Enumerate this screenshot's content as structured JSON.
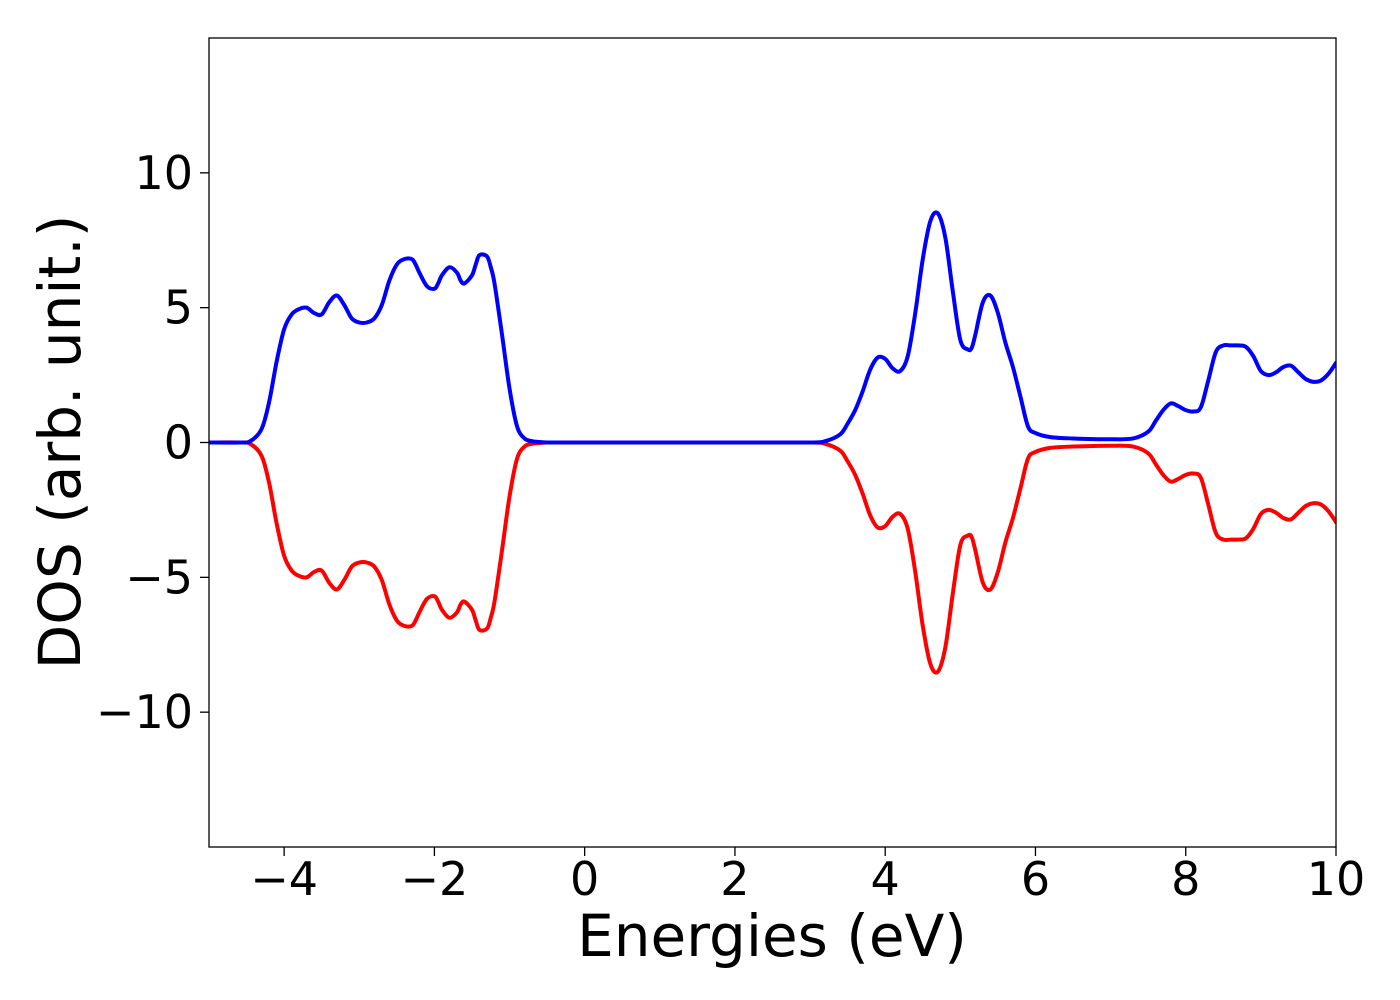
{
  "chart_data": {
    "type": "line",
    "title": "",
    "xlabel": "Energies (eV)",
    "ylabel": "DOS (arb. unit.)",
    "xlim": [
      -5,
      10
    ],
    "ylim": [
      -15,
      15
    ],
    "xticks": [
      -4,
      -2,
      0,
      2,
      4,
      6,
      8,
      10
    ],
    "yticks": [
      -10,
      -5,
      0,
      5,
      10
    ],
    "xtick_labels": [
      "−4",
      "−2",
      "0",
      "2",
      "4",
      "6",
      "8",
      "10"
    ],
    "ytick_labels": [
      "−10",
      "−5",
      "0",
      "5",
      "10"
    ],
    "grid": false,
    "legend": "none",
    "series": [
      {
        "color": "#0000ff",
        "x": [
          -5.0,
          -4.6,
          -4.45,
          -4.3,
          -4.2,
          -4.1,
          -4.0,
          -3.9,
          -3.8,
          -3.7,
          -3.6,
          -3.5,
          -3.4,
          -3.3,
          -3.2,
          -3.1,
          -3.0,
          -2.9,
          -2.8,
          -2.7,
          -2.6,
          -2.5,
          -2.4,
          -2.3,
          -2.25,
          -2.2,
          -2.1,
          -2.0,
          -1.95,
          -1.9,
          -1.8,
          -1.7,
          -1.65,
          -1.6,
          -1.5,
          -1.45,
          -1.4,
          -1.3,
          -1.25,
          -1.2,
          -1.1,
          -1.0,
          -0.9,
          -0.8,
          -0.7,
          -0.6,
          -0.5,
          -0.3,
          0.0,
          1.0,
          2.0,
          3.0,
          3.2,
          3.4,
          3.5,
          3.6,
          3.7,
          3.8,
          3.9,
          4.0,
          4.1,
          4.2,
          4.3,
          4.4,
          4.5,
          4.6,
          4.7,
          4.8,
          4.9,
          5.0,
          5.1,
          5.15,
          5.2,
          5.3,
          5.4,
          5.5,
          5.6,
          5.7,
          5.8,
          5.9,
          6.0,
          6.2,
          6.5,
          7.0,
          7.3,
          7.5,
          7.6,
          7.7,
          7.8,
          7.9,
          8.0,
          8.1,
          8.2,
          8.3,
          8.4,
          8.5,
          8.6,
          8.7,
          8.8,
          8.9,
          9.0,
          9.1,
          9.2,
          9.3,
          9.4,
          9.5,
          9.6,
          9.7,
          9.8,
          9.9,
          10.0
        ],
        "values": [
          0.0,
          0.0,
          0.05,
          0.5,
          1.5,
          3.0,
          4.2,
          4.75,
          4.95,
          5.0,
          4.8,
          4.75,
          5.2,
          5.45,
          5.1,
          4.6,
          4.45,
          4.45,
          4.6,
          5.1,
          6.0,
          6.6,
          6.8,
          6.8,
          6.6,
          6.3,
          5.8,
          5.7,
          5.9,
          6.2,
          6.5,
          6.3,
          6.0,
          5.9,
          6.2,
          6.6,
          6.95,
          6.9,
          6.5,
          5.9,
          4.0,
          2.0,
          0.6,
          0.15,
          0.05,
          0.02,
          0.0,
          0.0,
          0.0,
          0.0,
          0.0,
          0.0,
          0.05,
          0.3,
          0.7,
          1.2,
          1.9,
          2.7,
          3.15,
          3.1,
          2.75,
          2.65,
          3.2,
          4.8,
          6.8,
          8.2,
          8.5,
          7.6,
          5.6,
          3.8,
          3.45,
          3.5,
          4.0,
          5.2,
          5.45,
          4.8,
          3.7,
          2.8,
          1.7,
          0.6,
          0.35,
          0.2,
          0.15,
          0.12,
          0.15,
          0.4,
          0.8,
          1.2,
          1.45,
          1.35,
          1.2,
          1.15,
          1.3,
          2.3,
          3.35,
          3.6,
          3.6,
          3.6,
          3.55,
          3.2,
          2.65,
          2.5,
          2.6,
          2.8,
          2.85,
          2.6,
          2.35,
          2.25,
          2.3,
          2.55,
          2.95
        ]
      },
      {
        "color": "#ff0000",
        "x": [
          -5.0,
          -4.6,
          -4.45,
          -4.3,
          -4.2,
          -4.1,
          -4.0,
          -3.9,
          -3.8,
          -3.7,
          -3.6,
          -3.5,
          -3.4,
          -3.3,
          -3.2,
          -3.1,
          -3.0,
          -2.9,
          -2.8,
          -2.7,
          -2.6,
          -2.5,
          -2.4,
          -2.3,
          -2.25,
          -2.2,
          -2.1,
          -2.0,
          -1.95,
          -1.9,
          -1.8,
          -1.7,
          -1.65,
          -1.6,
          -1.5,
          -1.45,
          -1.4,
          -1.3,
          -1.25,
          -1.2,
          -1.1,
          -1.0,
          -0.9,
          -0.8,
          -0.7,
          -0.6,
          -0.5,
          -0.3,
          0.0,
          1.0,
          2.0,
          3.0,
          3.2,
          3.4,
          3.5,
          3.6,
          3.7,
          3.8,
          3.9,
          4.0,
          4.1,
          4.2,
          4.3,
          4.4,
          4.5,
          4.6,
          4.7,
          4.8,
          4.9,
          5.0,
          5.1,
          5.15,
          5.2,
          5.3,
          5.4,
          5.5,
          5.6,
          5.7,
          5.8,
          5.9,
          6.0,
          6.2,
          6.5,
          7.0,
          7.3,
          7.5,
          7.6,
          7.7,
          7.8,
          7.9,
          8.0,
          8.1,
          8.2,
          8.3,
          8.4,
          8.5,
          8.6,
          8.7,
          8.8,
          8.9,
          9.0,
          9.1,
          9.2,
          9.3,
          9.4,
          9.5,
          9.6,
          9.7,
          9.8,
          9.9,
          10.0
        ],
        "values": [
          0.0,
          0.0,
          -0.05,
          -0.5,
          -1.5,
          -3.0,
          -4.2,
          -4.75,
          -4.95,
          -5.0,
          -4.8,
          -4.75,
          -5.2,
          -5.45,
          -5.1,
          -4.6,
          -4.45,
          -4.45,
          -4.6,
          -5.1,
          -6.0,
          -6.6,
          -6.8,
          -6.8,
          -6.6,
          -6.3,
          -5.8,
          -5.7,
          -5.9,
          -6.2,
          -6.5,
          -6.3,
          -6.0,
          -5.9,
          -6.2,
          -6.6,
          -6.95,
          -6.9,
          -6.5,
          -5.9,
          -4.0,
          -2.0,
          -0.6,
          -0.15,
          -0.05,
          -0.02,
          0.0,
          0.0,
          0.0,
          0.0,
          0.0,
          0.0,
          -0.05,
          -0.3,
          -0.7,
          -1.2,
          -1.9,
          -2.7,
          -3.15,
          -3.1,
          -2.75,
          -2.65,
          -3.2,
          -4.8,
          -6.8,
          -8.2,
          -8.5,
          -7.6,
          -5.6,
          -3.8,
          -3.45,
          -3.5,
          -4.0,
          -5.2,
          -5.45,
          -4.8,
          -3.7,
          -2.8,
          -1.7,
          -0.6,
          -0.35,
          -0.2,
          -0.15,
          -0.12,
          -0.15,
          -0.4,
          -0.8,
          -1.2,
          -1.45,
          -1.35,
          -1.2,
          -1.15,
          -1.3,
          -2.3,
          -3.35,
          -3.6,
          -3.6,
          -3.6,
          -3.55,
          -3.2,
          -2.65,
          -2.5,
          -2.6,
          -2.8,
          -2.85,
          -2.6,
          -2.35,
          -2.25,
          -2.3,
          -2.55,
          -2.95
        ]
      }
    ]
  }
}
